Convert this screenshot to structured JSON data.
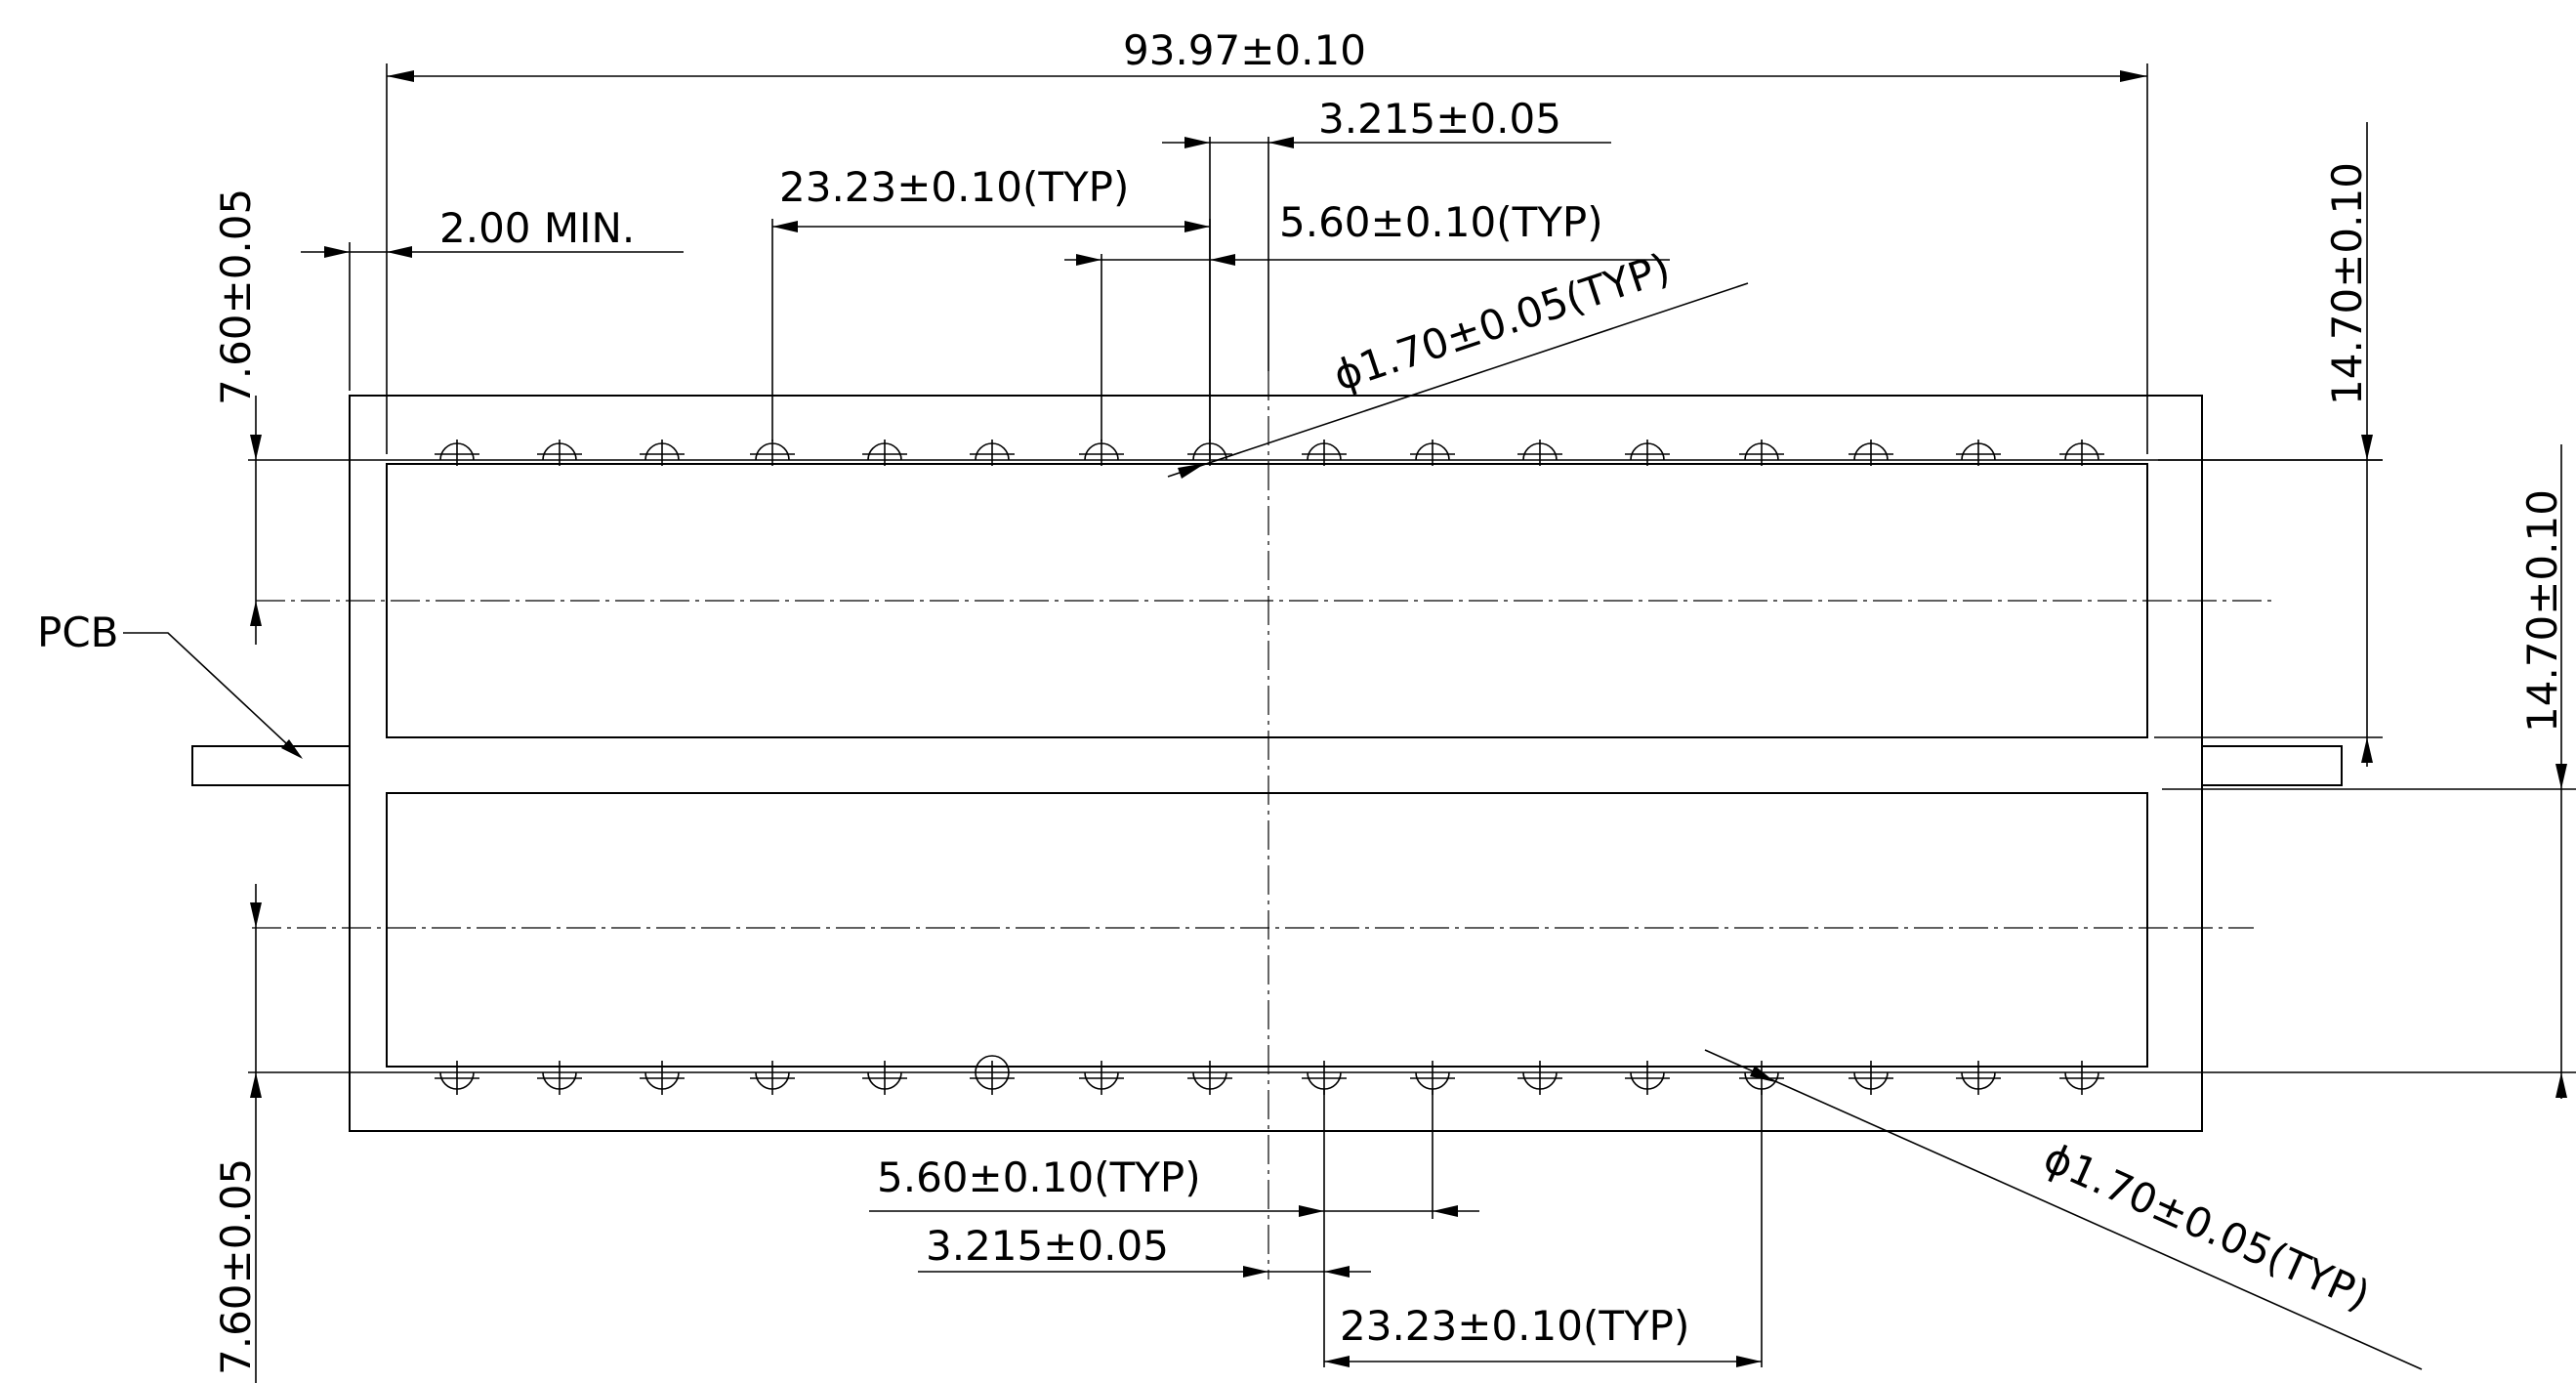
{
  "dimensions": {
    "overall_length": "93.97±0.10",
    "offset_pitch": "3.215±0.05",
    "group_pitch_top": "23.23±0.10(TYP)",
    "pin_pitch_top": "5.60±0.10(TYP)",
    "hole_dia_top": "ϕ1.70±0.05(TYP)",
    "min_edge": "2.00  MIN.",
    "left_top_height": "7.60±0.05",
    "right_height_a": "14.70±0.10",
    "right_height_b": "14.70±0.10",
    "pin_pitch_bottom": "5.60±0.10(TYP)",
    "offset_pitch_bottom": "3.215±0.05",
    "group_pitch_bottom": "23.23±0.10(TYP)",
    "hole_dia_bottom": "ϕ1.70±0.05(TYP)",
    "left_bottom_height": "7.60±0.05"
  },
  "labels": {
    "pcb": "PCB"
  }
}
